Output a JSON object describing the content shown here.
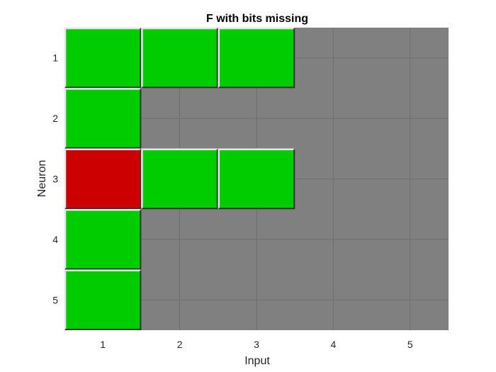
{
  "chart_data": {
    "type": "heatmap",
    "title": "F with bits missing",
    "xlabel": "Input",
    "ylabel": "Neuron",
    "x_ticks": [
      "1",
      "2",
      "3",
      "4",
      "5"
    ],
    "y_ticks": [
      "1",
      "2",
      "3",
      "4",
      "5"
    ],
    "xlim": [
      0.5,
      5.5
    ],
    "ylim": [
      0.5,
      5.5
    ],
    "y_direction": "reverse",
    "grid": true,
    "cells": [
      {
        "neuron": 1,
        "input": 1,
        "state": "on"
      },
      {
        "neuron": 1,
        "input": 2,
        "state": "on"
      },
      {
        "neuron": 1,
        "input": 3,
        "state": "on"
      },
      {
        "neuron": 2,
        "input": 1,
        "state": "on"
      },
      {
        "neuron": 3,
        "input": 1,
        "state": "error"
      },
      {
        "neuron": 3,
        "input": 2,
        "state": "on"
      },
      {
        "neuron": 3,
        "input": 3,
        "state": "on"
      },
      {
        "neuron": 4,
        "input": 1,
        "state": "on"
      },
      {
        "neuron": 5,
        "input": 1,
        "state": "on"
      }
    ],
    "colors": {
      "background": "#808080",
      "grid": "#6e6e6e",
      "on": "#00cc00",
      "error": "#cc0000",
      "highlight": "#e6e6e6",
      "shadow": "#333333"
    }
  }
}
